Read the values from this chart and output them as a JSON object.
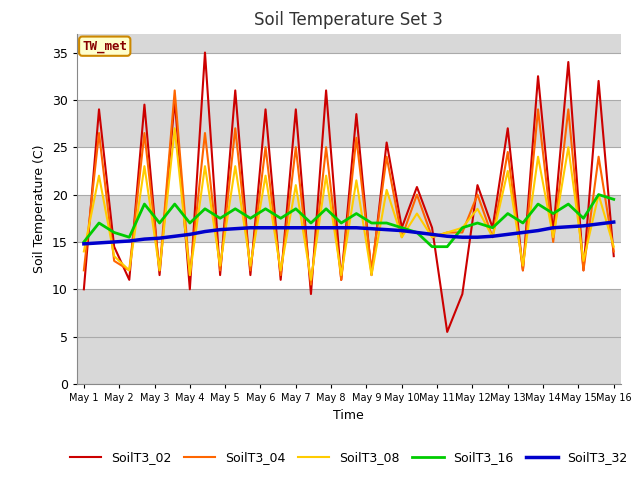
{
  "title": "Soil Temperature Set 3",
  "xlabel": "Time",
  "ylabel": "Soil Temperature (C)",
  "ylim": [
    0,
    37
  ],
  "background_color": "#ffffff",
  "plot_bg_color": "#d8d8d8",
  "annotation_label": "TW_met",
  "annotation_color": "#880000",
  "annotation_bg": "#ffffcc",
  "annotation_border": "#cc8800",
  "x_tick_labels": [
    "May 1",
    "May 2",
    "May 3",
    "May 4",
    "May 5",
    "May 6",
    "May 7",
    "May 8",
    "May 9",
    "May 10",
    "May 11",
    "May 12",
    "May 13",
    "May 14",
    "May 15",
    "May 16"
  ],
  "yticks": [
    0,
    5,
    10,
    15,
    20,
    25,
    30,
    35
  ],
  "alternating_bands": [
    [
      0,
      5,
      "#d8d8d8"
    ],
    [
      5,
      10,
      "#d8d8d8"
    ],
    [
      10,
      15,
      "#ffffff"
    ],
    [
      15,
      20,
      "#d8d8d8"
    ],
    [
      20,
      25,
      "#ffffff"
    ],
    [
      25,
      30,
      "#d8d8d8"
    ],
    [
      30,
      35,
      "#ffffff"
    ],
    [
      35,
      37,
      "#d8d8d8"
    ]
  ],
  "series": {
    "SoilT3_02": {
      "color": "#cc0000",
      "linewidth": 1.5,
      "data": [
        10.0,
        29.0,
        14.5,
        11.0,
        29.5,
        11.5,
        30.0,
        10.0,
        35.0,
        11.5,
        31.0,
        11.5,
        29.0,
        11.0,
        29.0,
        9.5,
        31.0,
        11.0,
        28.5,
        11.5,
        25.5,
        16.5,
        20.8,
        16.5,
        5.5,
        9.5,
        21.0,
        16.5,
        27.0,
        12.0,
        32.5,
        16.0,
        34.0,
        12.0,
        32.0,
        13.5
      ]
    },
    "SoilT3_04": {
      "color": "#ff6600",
      "linewidth": 1.5,
      "data": [
        12.0,
        26.5,
        13.0,
        12.0,
        26.5,
        12.0,
        31.0,
        11.5,
        26.5,
        12.0,
        27.0,
        12.0,
        25.0,
        11.5,
        25.0,
        10.5,
        25.0,
        11.0,
        26.0,
        12.0,
        24.0,
        15.5,
        20.0,
        15.5,
        16.0,
        16.0,
        20.0,
        15.5,
        24.5,
        12.0,
        29.0,
        15.0,
        29.0,
        12.0,
        24.0,
        14.0
      ]
    },
    "SoilT3_08": {
      "color": "#ffcc00",
      "linewidth": 1.5,
      "data": [
        14.0,
        22.0,
        13.5,
        12.0,
        23.0,
        12.0,
        27.0,
        11.5,
        23.0,
        12.5,
        23.0,
        12.5,
        22.0,
        12.0,
        21.0,
        11.0,
        22.0,
        11.5,
        21.5,
        11.5,
        20.5,
        15.5,
        18.0,
        15.5,
        16.0,
        16.5,
        18.5,
        15.5,
        22.5,
        12.5,
        24.0,
        15.5,
        25.0,
        13.0,
        20.0,
        14.5
      ]
    },
    "SoilT3_16": {
      "color": "#00cc00",
      "linewidth": 2.0,
      "data": [
        15.0,
        17.0,
        16.0,
        15.5,
        19.0,
        17.0,
        19.0,
        17.0,
        18.5,
        17.5,
        18.5,
        17.5,
        18.5,
        17.5,
        18.5,
        17.0,
        18.5,
        17.0,
        18.0,
        17.0,
        17.0,
        16.5,
        16.0,
        14.5,
        14.5,
        16.5,
        17.0,
        16.5,
        18.0,
        17.0,
        19.0,
        18.0,
        19.0,
        17.5,
        20.0,
        19.5
      ]
    },
    "SoilT3_32": {
      "color": "#0000cc",
      "linewidth": 2.5,
      "data": [
        14.8,
        14.9,
        15.0,
        15.1,
        15.3,
        15.4,
        15.6,
        15.8,
        16.1,
        16.3,
        16.4,
        16.5,
        16.5,
        16.5,
        16.5,
        16.5,
        16.5,
        16.5,
        16.5,
        16.4,
        16.3,
        16.2,
        16.0,
        15.8,
        15.6,
        15.5,
        15.5,
        15.6,
        15.8,
        16.0,
        16.2,
        16.5,
        16.6,
        16.7,
        16.9,
        17.1
      ]
    }
  }
}
